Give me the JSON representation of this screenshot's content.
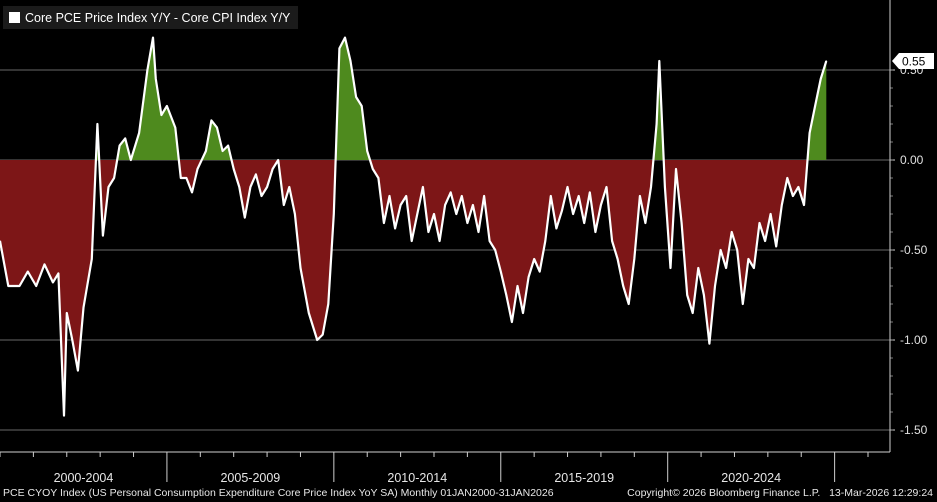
{
  "legend": {
    "label": "Core PCE Price Index Y/Y - Core CPI Index Y/Y"
  },
  "footer": {
    "source": "PCE CYOY Index (US Personal Consumption Expenditure Core Price Index YoY SA) Monthly 01JAN2000-31JAN2026",
    "copyright": "Copyright© 2026 Bloomberg Finance L.P.",
    "timestamp": "13-Mar-2026 12:29:24"
  },
  "colors": {
    "background": "#000000",
    "positive_fill": "#4e8a1e",
    "negative_fill": "#7d1617",
    "line": "#ffffff",
    "grid": "#8c8c8c"
  },
  "chart_data": {
    "type": "area",
    "title": "",
    "xlabel": "",
    "ylabel": "",
    "x_start": "2000-01",
    "x_end": "2026-01",
    "x_range": [
      "2000-01",
      "2026-01"
    ],
    "ylim": [
      -1.6,
      0.7
    ],
    "y_ticks": [
      0.5,
      0.0,
      -0.5,
      -1.0,
      -1.5
    ],
    "y_tick_labels": [
      "0.50",
      "0.00",
      "-0.50",
      "-1.00",
      "-1.50"
    ],
    "x_period_labels": [
      "2000-2004",
      "2005-2009",
      "2010-2014",
      "2015-2019",
      "2020-2024"
    ],
    "last_value": 0.55,
    "last_value_label": "0.55",
    "grid": true,
    "legend_position": "top-left",
    "series": [
      {
        "name": "Core PCE Price Index Y/Y - Core CPI Index Y/Y",
        "points": [
          [
            "2000-01",
            -0.45
          ],
          [
            "2000-04",
            -0.7
          ],
          [
            "2000-08",
            -0.7
          ],
          [
            "2000-11",
            -0.62
          ],
          [
            "2001-02",
            -0.7
          ],
          [
            "2001-05",
            -0.58
          ],
          [
            "2001-08",
            -0.68
          ],
          [
            "2001-10",
            -0.63
          ],
          [
            "2001-12",
            -1.42
          ],
          [
            "2002-01",
            -0.85
          ],
          [
            "2002-03",
            -1.0
          ],
          [
            "2002-05",
            -1.17
          ],
          [
            "2002-07",
            -0.82
          ],
          [
            "2002-10",
            -0.55
          ],
          [
            "2002-12",
            0.2
          ],
          [
            "2003-02",
            -0.42
          ],
          [
            "2003-04",
            -0.15
          ],
          [
            "2003-06",
            -0.1
          ],
          [
            "2003-08",
            0.08
          ],
          [
            "2003-10",
            0.12
          ],
          [
            "2003-12",
            0.0
          ],
          [
            "2004-03",
            0.15
          ],
          [
            "2004-06",
            0.5
          ],
          [
            "2004-08",
            0.68
          ],
          [
            "2004-09",
            0.45
          ],
          [
            "2004-11",
            0.25
          ],
          [
            "2005-01",
            0.3
          ],
          [
            "2005-04",
            0.18
          ],
          [
            "2005-06",
            -0.1
          ],
          [
            "2005-08",
            -0.1
          ],
          [
            "2005-10",
            -0.18
          ],
          [
            "2005-12",
            -0.05
          ],
          [
            "2006-03",
            0.05
          ],
          [
            "2006-05",
            0.22
          ],
          [
            "2006-07",
            0.18
          ],
          [
            "2006-09",
            0.05
          ],
          [
            "2006-11",
            0.08
          ],
          [
            "2007-01",
            -0.05
          ],
          [
            "2007-03",
            -0.15
          ],
          [
            "2007-05",
            -0.32
          ],
          [
            "2007-07",
            -0.15
          ],
          [
            "2007-09",
            -0.08
          ],
          [
            "2007-11",
            -0.2
          ],
          [
            "2008-01",
            -0.15
          ],
          [
            "2008-03",
            -0.05
          ],
          [
            "2008-05",
            0.0
          ],
          [
            "2008-07",
            -0.25
          ],
          [
            "2008-09",
            -0.15
          ],
          [
            "2008-11",
            -0.3
          ],
          [
            "2009-01",
            -0.6
          ],
          [
            "2009-04",
            -0.85
          ],
          [
            "2009-07",
            -1.0
          ],
          [
            "2009-09",
            -0.97
          ],
          [
            "2009-11",
            -0.8
          ],
          [
            "2010-01",
            -0.3
          ],
          [
            "2010-03",
            0.62
          ],
          [
            "2010-05",
            0.68
          ],
          [
            "2010-07",
            0.55
          ],
          [
            "2010-09",
            0.35
          ],
          [
            "2010-11",
            0.3
          ],
          [
            "2011-01",
            0.05
          ],
          [
            "2011-03",
            -0.05
          ],
          [
            "2011-05",
            -0.1
          ],
          [
            "2011-07",
            -0.35
          ],
          [
            "2011-09",
            -0.2
          ],
          [
            "2011-11",
            -0.38
          ],
          [
            "2012-01",
            -0.25
          ],
          [
            "2012-03",
            -0.2
          ],
          [
            "2012-05",
            -0.45
          ],
          [
            "2012-07",
            -0.3
          ],
          [
            "2012-09",
            -0.15
          ],
          [
            "2012-11",
            -0.4
          ],
          [
            "2013-01",
            -0.3
          ],
          [
            "2013-03",
            -0.45
          ],
          [
            "2013-05",
            -0.25
          ],
          [
            "2013-07",
            -0.18
          ],
          [
            "2013-09",
            -0.3
          ],
          [
            "2013-11",
            -0.2
          ],
          [
            "2014-01",
            -0.35
          ],
          [
            "2014-03",
            -0.25
          ],
          [
            "2014-05",
            -0.4
          ],
          [
            "2014-07",
            -0.2
          ],
          [
            "2014-09",
            -0.45
          ],
          [
            "2014-11",
            -0.5
          ],
          [
            "2015-01",
            -0.62
          ],
          [
            "2015-03",
            -0.75
          ],
          [
            "2015-05",
            -0.9
          ],
          [
            "2015-07",
            -0.7
          ],
          [
            "2015-09",
            -0.85
          ],
          [
            "2015-11",
            -0.65
          ],
          [
            "2016-01",
            -0.55
          ],
          [
            "2016-03",
            -0.62
          ],
          [
            "2016-05",
            -0.45
          ],
          [
            "2016-07",
            -0.2
          ],
          [
            "2016-09",
            -0.38
          ],
          [
            "2016-11",
            -0.28
          ],
          [
            "2017-01",
            -0.15
          ],
          [
            "2017-03",
            -0.3
          ],
          [
            "2017-05",
            -0.2
          ],
          [
            "2017-07",
            -0.35
          ],
          [
            "2017-09",
            -0.18
          ],
          [
            "2017-11",
            -0.4
          ],
          [
            "2018-01",
            -0.25
          ],
          [
            "2018-03",
            -0.15
          ],
          [
            "2018-05",
            -0.45
          ],
          [
            "2018-07",
            -0.55
          ],
          [
            "2018-09",
            -0.7
          ],
          [
            "2018-11",
            -0.8
          ],
          [
            "2019-01",
            -0.55
          ],
          [
            "2019-03",
            -0.2
          ],
          [
            "2019-05",
            -0.35
          ],
          [
            "2019-07",
            -0.15
          ],
          [
            "2019-09",
            0.2
          ],
          [
            "2019-10",
            0.55
          ],
          [
            "2019-12",
            -0.15
          ],
          [
            "2020-02",
            -0.6
          ],
          [
            "2020-04",
            -0.05
          ],
          [
            "2020-06",
            -0.35
          ],
          [
            "2020-08",
            -0.75
          ],
          [
            "2020-10",
            -0.85
          ],
          [
            "2020-12",
            -0.6
          ],
          [
            "2021-02",
            -0.75
          ],
          [
            "2021-04",
            -1.02
          ],
          [
            "2021-06",
            -0.7
          ],
          [
            "2021-08",
            -0.5
          ],
          [
            "2021-10",
            -0.6
          ],
          [
            "2021-12",
            -0.4
          ],
          [
            "2022-02",
            -0.5
          ],
          [
            "2022-04",
            -0.8
          ],
          [
            "2022-06",
            -0.55
          ],
          [
            "2022-08",
            -0.6
          ],
          [
            "2022-10",
            -0.35
          ],
          [
            "2022-12",
            -0.45
          ],
          [
            "2023-02",
            -0.3
          ],
          [
            "2023-04",
            -0.48
          ],
          [
            "2023-06",
            -0.25
          ],
          [
            "2023-08",
            -0.1
          ],
          [
            "2023-10",
            -0.2
          ],
          [
            "2023-12",
            -0.15
          ],
          [
            "2024-02",
            -0.25
          ],
          [
            "2024-04",
            0.15
          ],
          [
            "2024-06",
            0.3
          ],
          [
            "2024-08",
            0.45
          ],
          [
            "2024-10",
            0.55
          ]
        ]
      }
    ]
  }
}
